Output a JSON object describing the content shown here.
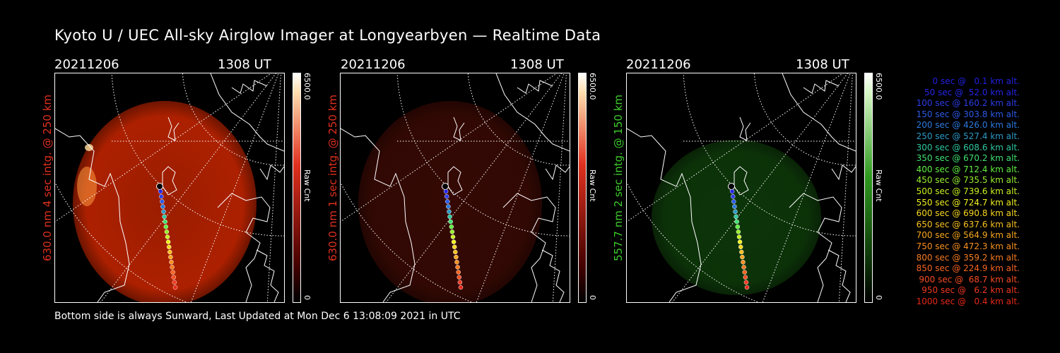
{
  "title": "Kyoto U / UEC All-sky Airglow Imager at Longyearbyen — Realtime Data",
  "footer": "Bottom side is always Sunward, Last Updated at Mon Dec  6 13:08:09 2021 in UTC",
  "panels": [
    {
      "date": "20211206",
      "time": "1308 UT",
      "label": "630.0 nm 4 sec intg. @ 250 km",
      "label_color": "#e0301e",
      "cbar_max": "6500.0",
      "cbar_min": "0",
      "cbar_unit": "Raw Cnt",
      "cbar_color": "#e0301e",
      "glow": "#b52200"
    },
    {
      "date": "20211206",
      "time": "1308 UT",
      "label": "630.0 nm 1 sec intg. @ 250 km",
      "label_color": "#e0301e",
      "cbar_max": "6500.0",
      "cbar_min": "0",
      "cbar_unit": "Raw Cnt",
      "cbar_color": "#e0301e",
      "glow": "#3a0a04"
    },
    {
      "date": "20211206",
      "time": "1308 UT",
      "label": "557.7 nm 2 sec intg. @ 150 km",
      "label_color": "#3ccc2a",
      "cbar_max": "6500.0",
      "cbar_min": "0",
      "cbar_unit": "Raw Cnt",
      "cbar_color": "#2e9a1e",
      "glow": "#0e3a0a"
    }
  ],
  "legend": [
    {
      "text": "0 sec @   0.1 km alt.",
      "color": "#2020e0"
    },
    {
      "text": "50 sec @  52.0 km alt.",
      "color": "#2424e8"
    },
    {
      "text": "100 sec @ 160.2 km alt.",
      "color": "#2c3ce8"
    },
    {
      "text": "150 sec @ 303.8 km alt.",
      "color": "#2c5ae8"
    },
    {
      "text": "200 sec @ 426.0 km alt.",
      "color": "#2c7ae0"
    },
    {
      "text": "250 sec @ 527.4 km alt.",
      "color": "#2c9ac8"
    },
    {
      "text": "300 sec @ 608.6 km alt.",
      "color": "#30c8a0"
    },
    {
      "text": "350 sec @ 670.2 km alt.",
      "color": "#40e070"
    },
    {
      "text": "400 sec @ 712.4 km alt.",
      "color": "#60f040"
    },
    {
      "text": "450 sec @ 735.5 km alt.",
      "color": "#98f030"
    },
    {
      "text": "500 sec @ 739.6 km alt.",
      "color": "#c8f020"
    },
    {
      "text": "550 sec @ 724.7 km alt.",
      "color": "#f0f020"
    },
    {
      "text": "600 sec @ 690.8 km alt.",
      "color": "#f8d820"
    },
    {
      "text": "650 sec @ 637.6 km alt.",
      "color": "#f8c020"
    },
    {
      "text": "700 sec @ 564.9 km alt.",
      "color": "#f8a820"
    },
    {
      "text": "750 sec @ 472.3 km alt.",
      "color": "#f89020"
    },
    {
      "text": "800 sec @ 359.2 km alt.",
      "color": "#f87c20"
    },
    {
      "text": "850 sec @ 224.9 km alt.",
      "color": "#f86420"
    },
    {
      "text": "900 sec @  68.7 km alt.",
      "color": "#f84c20"
    },
    {
      "text": "950 sec @   6.2 km alt.",
      "color": "#f03820"
    },
    {
      "text": "1000 sec @   0.4 km alt.",
      "color": "#e82818"
    }
  ]
}
